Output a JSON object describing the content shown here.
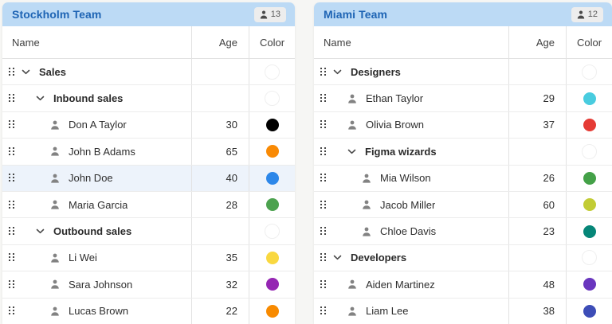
{
  "page": {
    "background": "#f6f6f4"
  },
  "colors": {
    "panel_header_bg": "#bcdaf5",
    "panel_title": "#1e64b4",
    "selected_row_bg": "#edf3fb"
  },
  "icons": {
    "badge": "person-icon",
    "row_drag": "drag-handle-icon",
    "group_toggle": "chevron-down-icon",
    "person_row": "person-icon"
  },
  "panels": [
    {
      "title": "Stockholm Team",
      "member_count": "13",
      "columns": {
        "name": "Name",
        "age": "Age",
        "color": "Color"
      },
      "rows": [
        {
          "kind": "group",
          "depth": 0,
          "label": "Sales",
          "age": "",
          "color": null
        },
        {
          "kind": "group",
          "depth": 1,
          "label": "Inbound sales",
          "age": "",
          "color": null
        },
        {
          "kind": "person",
          "depth": 2,
          "label": "Don A Taylor",
          "age": "30",
          "color": "#000000"
        },
        {
          "kind": "person",
          "depth": 2,
          "label": "John B Adams",
          "age": "65",
          "color": "#f98a05"
        },
        {
          "kind": "person",
          "depth": 2,
          "label": "John Doe",
          "age": "40",
          "color": "#2d87e9",
          "selected": true
        },
        {
          "kind": "person",
          "depth": 2,
          "label": "Maria Garcia",
          "age": "28",
          "color": "#4ca24f"
        },
        {
          "kind": "group",
          "depth": 1,
          "label": "Outbound sales",
          "age": "",
          "color": null
        },
        {
          "kind": "person",
          "depth": 2,
          "label": "Li Wei",
          "age": "35",
          "color": "#f9d840"
        },
        {
          "kind": "person",
          "depth": 2,
          "label": "Sara Johnson",
          "age": "32",
          "color": "#9526b3"
        },
        {
          "kind": "person",
          "depth": 2,
          "label": "Lucas Brown",
          "age": "22",
          "color": "#f88a00"
        }
      ]
    },
    {
      "title": "Miami Team",
      "member_count": "12",
      "columns": {
        "name": "Name",
        "age": "Age",
        "color": "Color"
      },
      "rows": [
        {
          "kind": "group",
          "depth": 0,
          "label": "Designers",
          "age": "",
          "color": null
        },
        {
          "kind": "person",
          "depth": 1,
          "label": "Ethan Taylor",
          "age": "29",
          "color": "#49ccdf"
        },
        {
          "kind": "person",
          "depth": 1,
          "label": "Olivia Brown",
          "age": "37",
          "color": "#e53b35"
        },
        {
          "kind": "group",
          "depth": 1,
          "label": "Figma wizards",
          "age": "",
          "color": null
        },
        {
          "kind": "person",
          "depth": 2,
          "label": "Mia Wilson",
          "age": "26",
          "color": "#44a148"
        },
        {
          "kind": "person",
          "depth": 2,
          "label": "Jacob Miller",
          "age": "60",
          "color": "#c2cc35"
        },
        {
          "kind": "person",
          "depth": 2,
          "label": "Chloe Davis",
          "age": "23",
          "color": "#068678"
        },
        {
          "kind": "group",
          "depth": 0,
          "label": "Developers",
          "age": "",
          "color": null
        },
        {
          "kind": "person",
          "depth": 1,
          "label": "Aiden Martinez",
          "age": "48",
          "color": "#6936be"
        },
        {
          "kind": "person",
          "depth": 1,
          "label": "Liam Lee",
          "age": "38",
          "color": "#3d4db7"
        }
      ]
    }
  ]
}
